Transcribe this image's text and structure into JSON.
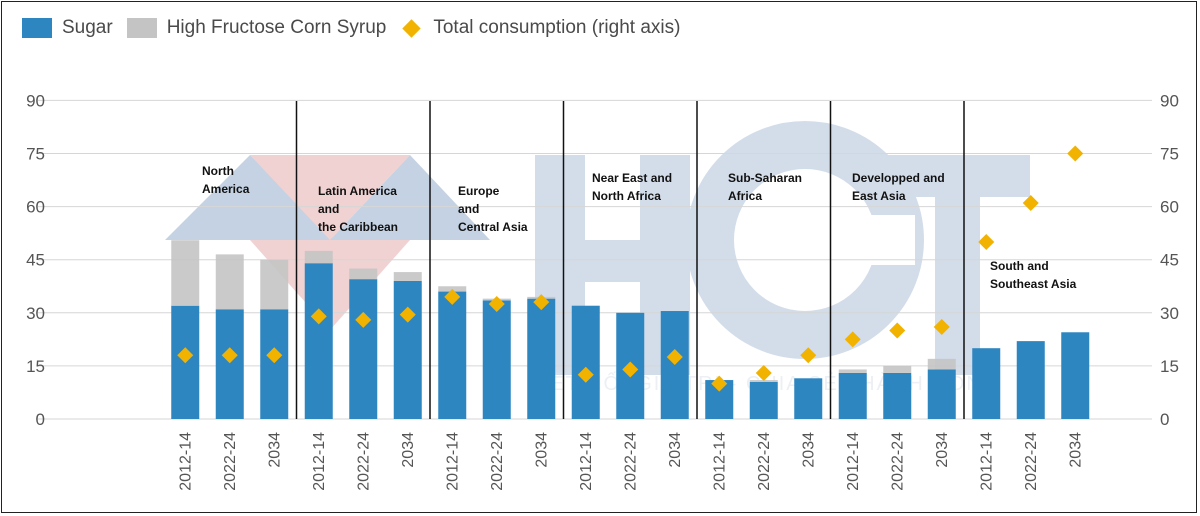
{
  "legend": {
    "items": [
      {
        "label": "Sugar",
        "color": "#2e86c1",
        "shape": "square"
      },
      {
        "label": "High Fructose Corn Syrup",
        "color": "#c4c4c4",
        "shape": "square"
      },
      {
        "label": "Total consumption (right axis)",
        "color": "#f2b200",
        "shape": "diamond"
      }
    ]
  },
  "watermark": {
    "text": "KẾT NỐI GIÁ TRỊ - CHIA SẺ THÀNH CÔNG",
    "logo": "HCT"
  },
  "chart_data": {
    "type": "bar",
    "stacked": true,
    "ylim": [
      0,
      90
    ],
    "yticks": [
      0,
      15,
      30,
      45,
      60,
      75,
      90
    ],
    "right_ylim": [
      0,
      90
    ],
    "grid": true,
    "legend_position": "top-left",
    "categories": [
      "2012-14",
      "2022-24",
      "2034",
      "2012-14",
      "2022-24",
      "2034",
      "2012-14",
      "2022-24",
      "2034",
      "2012-14",
      "2022-24",
      "2034",
      "2012-14",
      "2022-24",
      "2034",
      "2012-14",
      "2022-24",
      "2034",
      "2012-14",
      "2022-24",
      "2034"
    ],
    "groups": [
      {
        "label": "North\nAmerica",
        "count": 3
      },
      {
        "label": "Latin America\nand\nthe Caribbean",
        "count": 3
      },
      {
        "label": "Europe\nand\nCentral Asia",
        "count": 3
      },
      {
        "label": "Near East and\nNorth Africa",
        "count": 3
      },
      {
        "label": "Sub-Saharan\nAfrica",
        "count": 3
      },
      {
        "label": "Developped and\nEast Asia",
        "count": 3
      },
      {
        "label": "South and\nSoutheast Asia",
        "count": 3
      }
    ],
    "series": [
      {
        "name": "Sugar",
        "type": "bar",
        "color": "#2e86c1",
        "values": [
          32,
          31,
          31,
          44,
          39.5,
          39,
          36,
          33.5,
          34,
          32,
          30,
          30.5,
          11,
          10.5,
          11.5,
          13,
          13,
          14,
          20,
          22,
          24.5
        ]
      },
      {
        "name": "High Fructose Corn Syrup",
        "type": "bar",
        "color": "#c4c4c4",
        "values": [
          18.5,
          15.5,
          14,
          3.5,
          3,
          2.5,
          1.5,
          0.5,
          0.5,
          0,
          0,
          0,
          0,
          0.5,
          0,
          1,
          2,
          3,
          0,
          0,
          0
        ]
      },
      {
        "name": "Total consumption (right axis)",
        "type": "scatter",
        "axis": "right",
        "color": "#f2b200",
        "values": [
          18,
          18,
          18,
          29,
          28,
          29.5,
          34.5,
          32.5,
          33,
          12.5,
          14,
          17.5,
          10,
          13,
          18,
          22.5,
          25,
          26,
          50,
          61,
          75
        ]
      }
    ]
  }
}
